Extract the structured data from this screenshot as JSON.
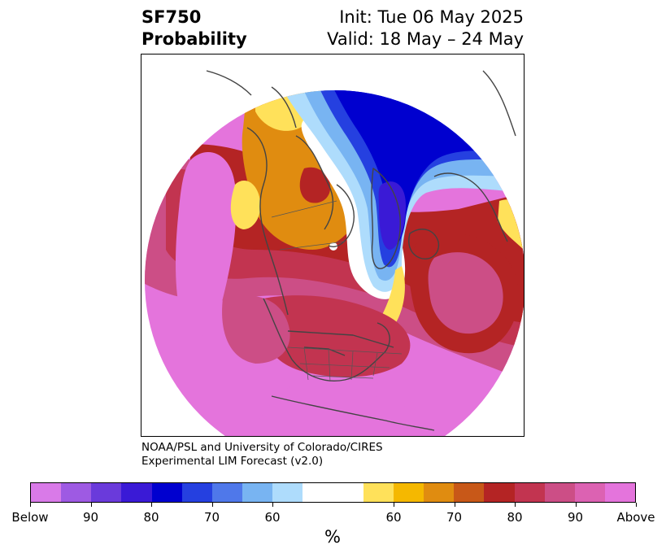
{
  "title": {
    "variable": "SF750",
    "subtitle": "Probability",
    "init": "Init: Tue 06 May 2025",
    "valid": "Valid: 18 May – 24 May"
  },
  "credit": {
    "line1": "NOAA/PSL and University of Colorado/CIRES",
    "line2": "Experimental LIM Forecast (v2.0)"
  },
  "colorbar": {
    "colors": [
      "#d97ae8",
      "#9e5ae3",
      "#6a3adb",
      "#3a1ad6",
      "#0000cf",
      "#2540e0",
      "#4f78ea",
      "#78b4f2",
      "#aedcfc",
      "#ffffff",
      "#ffffff",
      "#ffe15a",
      "#f5b800",
      "#e08c10",
      "#c85818",
      "#b42424",
      "#c23450",
      "#cc4e86",
      "#dc62b2",
      "#e474dc"
    ],
    "tick_labels": [
      "Below",
      "90",
      "80",
      "70",
      "60",
      "60",
      "70",
      "80",
      "90",
      "Above"
    ],
    "unit": "%"
  },
  "map": {
    "projection": "north-polar-stereographic",
    "region": "Northern Hemisphere, centered on North America"
  }
}
